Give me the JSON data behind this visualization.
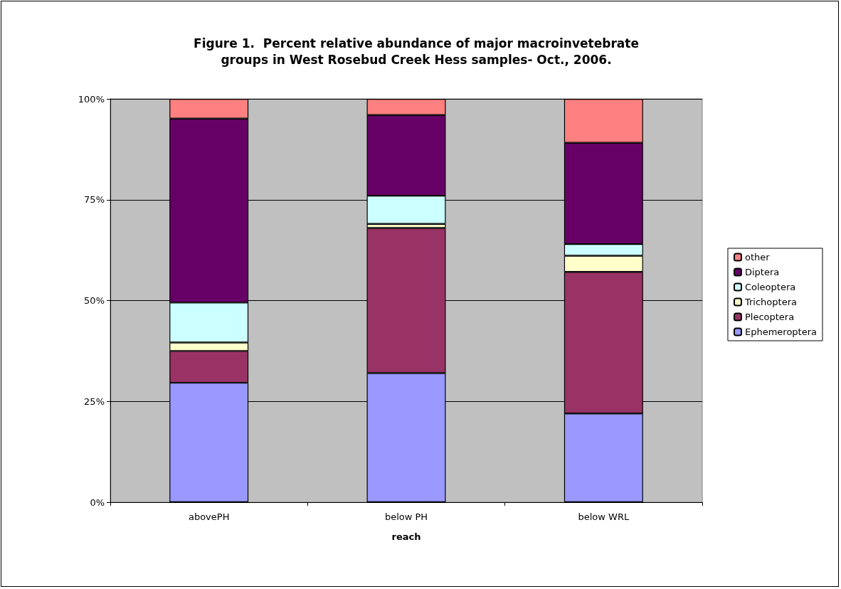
{
  "chart_data": {
    "type": "bar",
    "title": "Figure 1.  Percent relative abundance of major macroinvetebrate\ngroups in West Rosebud Creek Hess samples- Oct., 2006.",
    "xlabel": "reach",
    "categories": [
      "abovePH",
      "below PH",
      "below WRL"
    ],
    "stacked": true,
    "series": [
      {
        "name": "Ephemeroptera",
        "color": "#9999ff",
        "values": [
          29.6,
          32.0,
          22.0
        ]
      },
      {
        "name": "Plecoptera",
        "color": "#993366",
        "values": [
          7.9,
          36.0,
          35.1
        ]
      },
      {
        "name": "Trichoptera",
        "color": "#ffffcc",
        "values": [
          2.1,
          1.0,
          4.0
        ]
      },
      {
        "name": "Coleoptera",
        "color": "#ccffff",
        "values": [
          9.9,
          7.0,
          2.9
        ]
      },
      {
        "name": "Diptera",
        "color": "#660066",
        "values": [
          45.6,
          20.0,
          25.1
        ]
      },
      {
        "name": "other",
        "color": "#ff8080",
        "values": [
          4.9,
          4.0,
          10.9
        ]
      }
    ],
    "ylim": [
      0,
      100
    ],
    "yticks": [
      {
        "value": 0,
        "label": "0%"
      },
      {
        "value": 25,
        "label": "25%"
      },
      {
        "value": 50,
        "label": "50%"
      },
      {
        "value": 75,
        "label": "75%"
      },
      {
        "value": 100,
        "label": "100%"
      }
    ],
    "grid": "y",
    "legend": "right"
  }
}
